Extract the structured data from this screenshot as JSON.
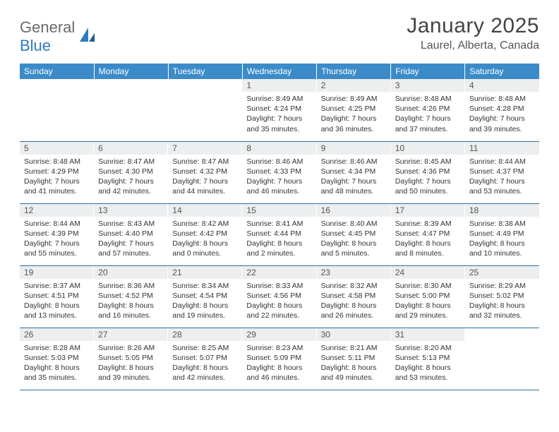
{
  "logo": {
    "text1": "General",
    "text2": "Blue"
  },
  "title": "January 2025",
  "location": "Laurel, Alberta, Canada",
  "colors": {
    "header_bg": "#3b8bc9",
    "header_text": "#ffffff",
    "daynum_bg": "#eceeef",
    "border": "#2f6fa5",
    "logo_gray": "#6b6b6b",
    "logo_blue": "#2f7bbf"
  },
  "weekdays": [
    "Sunday",
    "Monday",
    "Tuesday",
    "Wednesday",
    "Thursday",
    "Friday",
    "Saturday"
  ],
  "weeks": [
    [
      {
        "empty": true
      },
      {
        "empty": true
      },
      {
        "empty": true
      },
      {
        "day": "1",
        "sunrise": "Sunrise: 8:49 AM",
        "sunset": "Sunset: 4:24 PM",
        "daylight1": "Daylight: 7 hours",
        "daylight2": "and 35 minutes."
      },
      {
        "day": "2",
        "sunrise": "Sunrise: 8:49 AM",
        "sunset": "Sunset: 4:25 PM",
        "daylight1": "Daylight: 7 hours",
        "daylight2": "and 36 minutes."
      },
      {
        "day": "3",
        "sunrise": "Sunrise: 8:48 AM",
        "sunset": "Sunset: 4:26 PM",
        "daylight1": "Daylight: 7 hours",
        "daylight2": "and 37 minutes."
      },
      {
        "day": "4",
        "sunrise": "Sunrise: 8:48 AM",
        "sunset": "Sunset: 4:28 PM",
        "daylight1": "Daylight: 7 hours",
        "daylight2": "and 39 minutes."
      }
    ],
    [
      {
        "day": "5",
        "sunrise": "Sunrise: 8:48 AM",
        "sunset": "Sunset: 4:29 PM",
        "daylight1": "Daylight: 7 hours",
        "daylight2": "and 41 minutes."
      },
      {
        "day": "6",
        "sunrise": "Sunrise: 8:47 AM",
        "sunset": "Sunset: 4:30 PM",
        "daylight1": "Daylight: 7 hours",
        "daylight2": "and 42 minutes."
      },
      {
        "day": "7",
        "sunrise": "Sunrise: 8:47 AM",
        "sunset": "Sunset: 4:32 PM",
        "daylight1": "Daylight: 7 hours",
        "daylight2": "and 44 minutes."
      },
      {
        "day": "8",
        "sunrise": "Sunrise: 8:46 AM",
        "sunset": "Sunset: 4:33 PM",
        "daylight1": "Daylight: 7 hours",
        "daylight2": "and 46 minutes."
      },
      {
        "day": "9",
        "sunrise": "Sunrise: 8:46 AM",
        "sunset": "Sunset: 4:34 PM",
        "daylight1": "Daylight: 7 hours",
        "daylight2": "and 48 minutes."
      },
      {
        "day": "10",
        "sunrise": "Sunrise: 8:45 AM",
        "sunset": "Sunset: 4:36 PM",
        "daylight1": "Daylight: 7 hours",
        "daylight2": "and 50 minutes."
      },
      {
        "day": "11",
        "sunrise": "Sunrise: 8:44 AM",
        "sunset": "Sunset: 4:37 PM",
        "daylight1": "Daylight: 7 hours",
        "daylight2": "and 53 minutes."
      }
    ],
    [
      {
        "day": "12",
        "sunrise": "Sunrise: 8:44 AM",
        "sunset": "Sunset: 4:39 PM",
        "daylight1": "Daylight: 7 hours",
        "daylight2": "and 55 minutes."
      },
      {
        "day": "13",
        "sunrise": "Sunrise: 8:43 AM",
        "sunset": "Sunset: 4:40 PM",
        "daylight1": "Daylight: 7 hours",
        "daylight2": "and 57 minutes."
      },
      {
        "day": "14",
        "sunrise": "Sunrise: 8:42 AM",
        "sunset": "Sunset: 4:42 PM",
        "daylight1": "Daylight: 8 hours",
        "daylight2": "and 0 minutes."
      },
      {
        "day": "15",
        "sunrise": "Sunrise: 8:41 AM",
        "sunset": "Sunset: 4:44 PM",
        "daylight1": "Daylight: 8 hours",
        "daylight2": "and 2 minutes."
      },
      {
        "day": "16",
        "sunrise": "Sunrise: 8:40 AM",
        "sunset": "Sunset: 4:45 PM",
        "daylight1": "Daylight: 8 hours",
        "daylight2": "and 5 minutes."
      },
      {
        "day": "17",
        "sunrise": "Sunrise: 8:39 AM",
        "sunset": "Sunset: 4:47 PM",
        "daylight1": "Daylight: 8 hours",
        "daylight2": "and 8 minutes."
      },
      {
        "day": "18",
        "sunrise": "Sunrise: 8:38 AM",
        "sunset": "Sunset: 4:49 PM",
        "daylight1": "Daylight: 8 hours",
        "daylight2": "and 10 minutes."
      }
    ],
    [
      {
        "day": "19",
        "sunrise": "Sunrise: 8:37 AM",
        "sunset": "Sunset: 4:51 PM",
        "daylight1": "Daylight: 8 hours",
        "daylight2": "and 13 minutes."
      },
      {
        "day": "20",
        "sunrise": "Sunrise: 8:36 AM",
        "sunset": "Sunset: 4:52 PM",
        "daylight1": "Daylight: 8 hours",
        "daylight2": "and 16 minutes."
      },
      {
        "day": "21",
        "sunrise": "Sunrise: 8:34 AM",
        "sunset": "Sunset: 4:54 PM",
        "daylight1": "Daylight: 8 hours",
        "daylight2": "and 19 minutes."
      },
      {
        "day": "22",
        "sunrise": "Sunrise: 8:33 AM",
        "sunset": "Sunset: 4:56 PM",
        "daylight1": "Daylight: 8 hours",
        "daylight2": "and 22 minutes."
      },
      {
        "day": "23",
        "sunrise": "Sunrise: 8:32 AM",
        "sunset": "Sunset: 4:58 PM",
        "daylight1": "Daylight: 8 hours",
        "daylight2": "and 26 minutes."
      },
      {
        "day": "24",
        "sunrise": "Sunrise: 8:30 AM",
        "sunset": "Sunset: 5:00 PM",
        "daylight1": "Daylight: 8 hours",
        "daylight2": "and 29 minutes."
      },
      {
        "day": "25",
        "sunrise": "Sunrise: 8:29 AM",
        "sunset": "Sunset: 5:02 PM",
        "daylight1": "Daylight: 8 hours",
        "daylight2": "and 32 minutes."
      }
    ],
    [
      {
        "day": "26",
        "sunrise": "Sunrise: 8:28 AM",
        "sunset": "Sunset: 5:03 PM",
        "daylight1": "Daylight: 8 hours",
        "daylight2": "and 35 minutes."
      },
      {
        "day": "27",
        "sunrise": "Sunrise: 8:26 AM",
        "sunset": "Sunset: 5:05 PM",
        "daylight1": "Daylight: 8 hours",
        "daylight2": "and 39 minutes."
      },
      {
        "day": "28",
        "sunrise": "Sunrise: 8:25 AM",
        "sunset": "Sunset: 5:07 PM",
        "daylight1": "Daylight: 8 hours",
        "daylight2": "and 42 minutes."
      },
      {
        "day": "29",
        "sunrise": "Sunrise: 8:23 AM",
        "sunset": "Sunset: 5:09 PM",
        "daylight1": "Daylight: 8 hours",
        "daylight2": "and 46 minutes."
      },
      {
        "day": "30",
        "sunrise": "Sunrise: 8:21 AM",
        "sunset": "Sunset: 5:11 PM",
        "daylight1": "Daylight: 8 hours",
        "daylight2": "and 49 minutes."
      },
      {
        "day": "31",
        "sunrise": "Sunrise: 8:20 AM",
        "sunset": "Sunset: 5:13 PM",
        "daylight1": "Daylight: 8 hours",
        "daylight2": "and 53 minutes."
      },
      {
        "empty": true
      }
    ]
  ]
}
